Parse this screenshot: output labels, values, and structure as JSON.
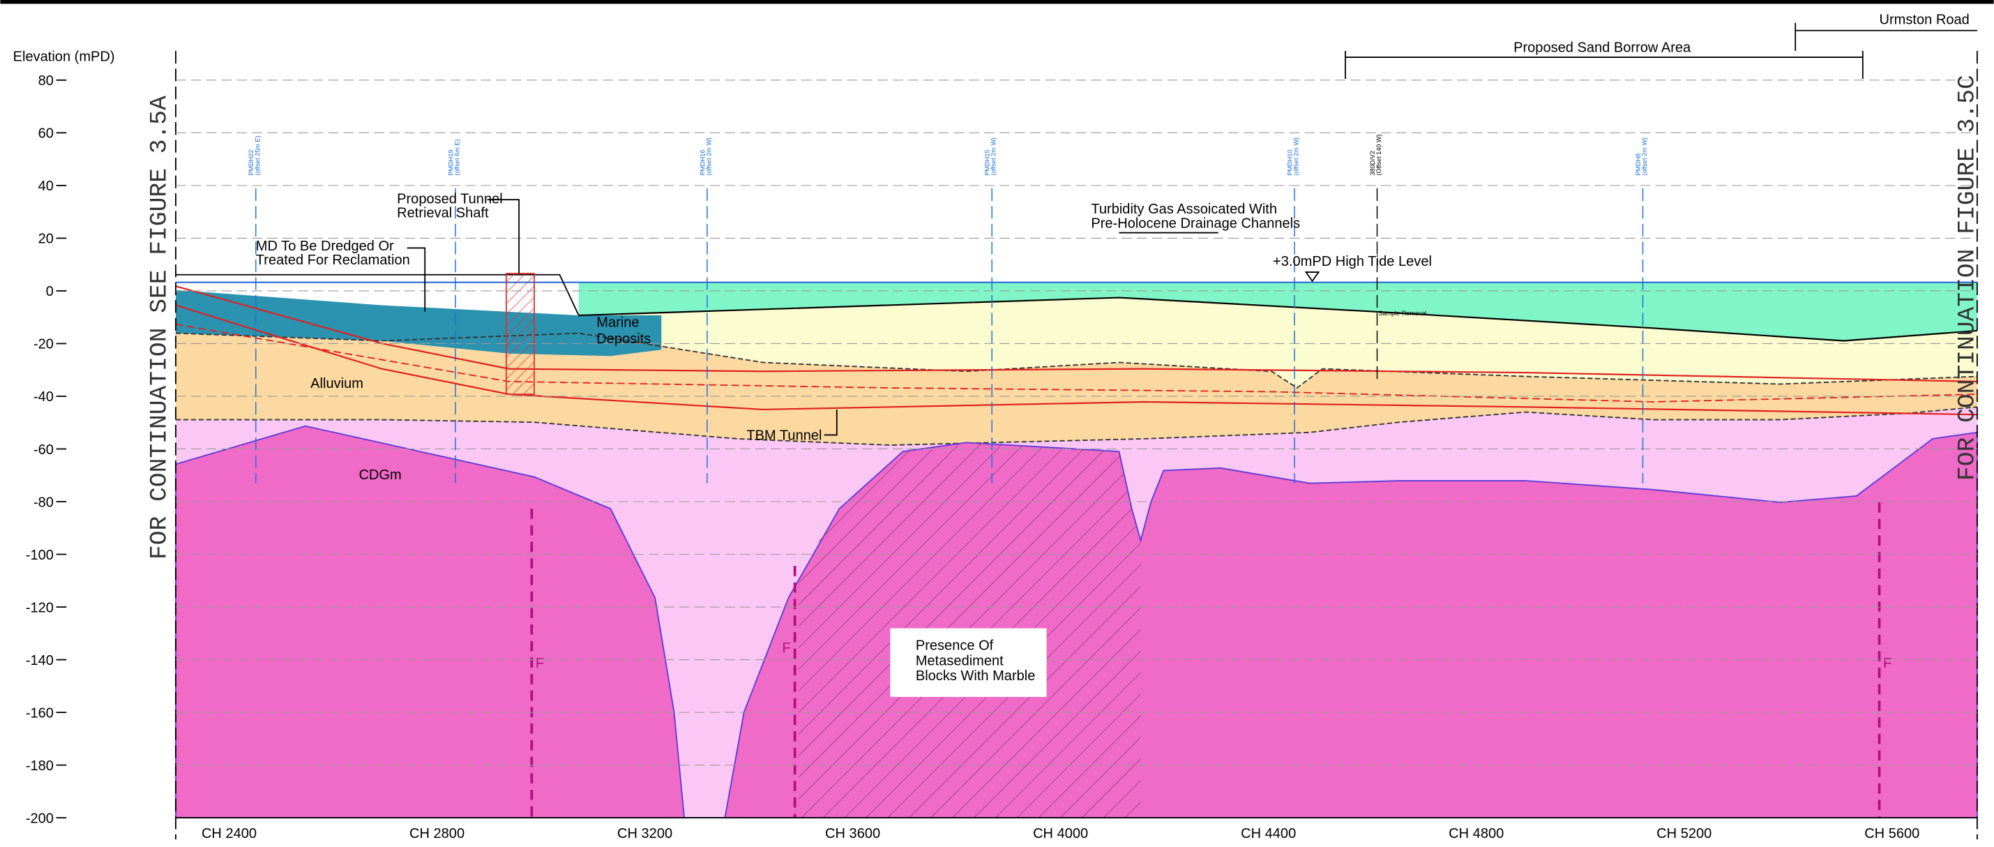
{
  "axis": {
    "title": "Elevation (mPD)",
    "yticks": [
      "80",
      "60",
      "40",
      "20",
      "0",
      "-20",
      "-40",
      "-60",
      "-80",
      "-100",
      "-120",
      "-140",
      "-160",
      "-180",
      "-200"
    ],
    "xticks": [
      "CH 2400",
      "CH 2800",
      "CH 3200",
      "CH 3600",
      "CH 4000",
      "CH 4400",
      "CH 4800",
      "CH 5200",
      "CH 5600"
    ]
  },
  "continuation": {
    "left": "FOR CONTINUATION SEE FIGURE 3.5A",
    "right": "FOR CONTINUATION FIGURE 3.5C"
  },
  "top": {
    "urmston": "Urmston Road",
    "sand_borrow": "Proposed Sand Borrow Area"
  },
  "annotations": {
    "shaft": [
      "Proposed Tunnel",
      "Retrieval Shaft"
    ],
    "dredge": [
      "MD To Be Dredged Or",
      "Treated For Reclamation"
    ],
    "marine": [
      "Marine",
      "Deposits"
    ],
    "alluvium": "Alluvium",
    "cdgm": "CDGm",
    "tbm": "TBM Tunnel",
    "turbidity": [
      "Turbidity Gas Assoicated With",
      "Pre-Holocene Drainage Channels"
    ],
    "tide": "+3.0mPD  High Tide Level",
    "metasediment": [
      "Presence Of",
      "Metasediment",
      "Blocks With Marble"
    ],
    "fault": "F",
    "sample": "Sample Removal"
  },
  "boreholes": [
    {
      "name": "PMDH22",
      "offset": "(offset 25m E)"
    },
    {
      "name": "PMDH19",
      "offset": "(offset 6m E)"
    },
    {
      "name": "PMDH16",
      "offset": "(offset 2m W)"
    },
    {
      "name": "PMDH15",
      "offset": "(offset 2m W)"
    },
    {
      "name": "PMDH10",
      "offset": "(offset 2m W)"
    },
    {
      "name": "380D/V2",
      "offset": "(Offset 140 W)"
    },
    {
      "name": "PMDH8",
      "offset": "(offset 2m W)"
    }
  ]
}
